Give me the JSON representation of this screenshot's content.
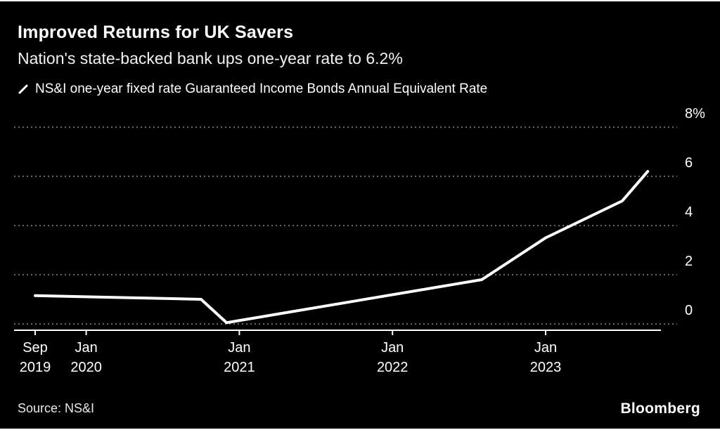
{
  "header": {
    "title": "Improved Returns for UK Savers",
    "subtitle": "Nation's state-backed bank ups one-year rate to 6.2%"
  },
  "legend": {
    "series_label": "NS&I one-year fixed rate Guaranteed Income Bonds Annual Equivalent Rate"
  },
  "footer": {
    "source": "Source: NS&I",
    "brand": "Bloomberg"
  },
  "chart_data": {
    "type": "line",
    "title": "Improved Returns for UK Savers",
    "subtitle": "Nation's state-backed bank ups one-year rate to 6.2%",
    "xlabel": "",
    "ylabel": "",
    "ylim": [
      -0.26,
      8.6
    ],
    "grid": "dotted-horizontal",
    "legend_position": "top-left",
    "y_ticks": [
      {
        "label": "8%",
        "value": 8
      },
      {
        "label": "6",
        "value": 6
      },
      {
        "label": "4",
        "value": 4
      },
      {
        "label": "2",
        "value": 2
      },
      {
        "label": "0",
        "value": 0
      }
    ],
    "x_ticks": [
      {
        "month": "Sep",
        "year": "2019",
        "date": "2019-09"
      },
      {
        "month": "Jan",
        "year": "2020",
        "date": "2020-01"
      },
      {
        "month": "Jan",
        "year": "2021",
        "date": "2021-01"
      },
      {
        "month": "Jan",
        "year": "2022",
        "date": "2022-01"
      },
      {
        "month": "Jan",
        "year": "2023",
        "date": "2023-01"
      }
    ],
    "series": [
      {
        "name": "NS&I one-year fixed rate Guaranteed Income Bonds Annual Equivalent Rate",
        "points": [
          [
            "2019-09",
            1.15
          ],
          [
            "2020-10",
            1.0
          ],
          [
            "2020-12",
            0.05
          ],
          [
            "2022-08",
            1.8
          ],
          [
            "2023-01",
            3.5
          ],
          [
            "2023-07",
            5.0
          ],
          [
            "2023-09",
            6.2
          ]
        ]
      }
    ],
    "colors": {
      "background": "#000000",
      "line": "#ffffff",
      "grid": "#8c8c8c",
      "text": "#ffffff",
      "axis": "#ffffff"
    }
  }
}
